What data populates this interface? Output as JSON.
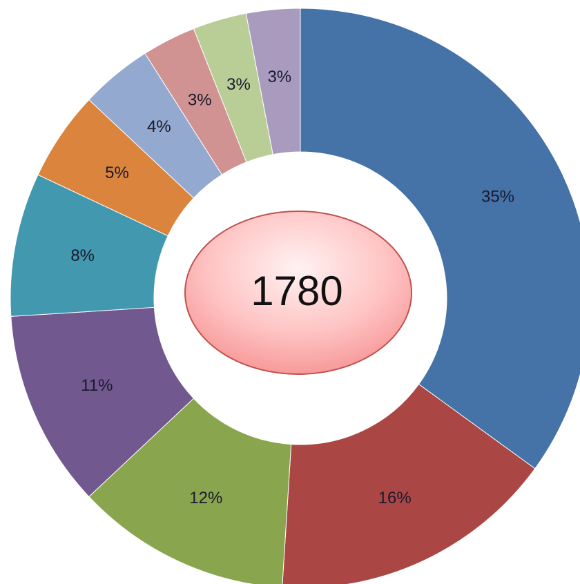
{
  "chart_data": {
    "type": "donut",
    "values": [
      35,
      16,
      12,
      11,
      8,
      5,
      4,
      3,
      3,
      3
    ],
    "value_labels": [
      "35%",
      "16%",
      "12%",
      "11%",
      "8%",
      "5%",
      "4%",
      "3%",
      "3%",
      "3%"
    ],
    "colors": [
      "#4572a7",
      "#aa4643",
      "#89a54e",
      "#71588f",
      "#4198af",
      "#db843d",
      "#93a9cf",
      "#d19392",
      "#b9cd96",
      "#a99bbd"
    ],
    "total": 1780
  }
}
